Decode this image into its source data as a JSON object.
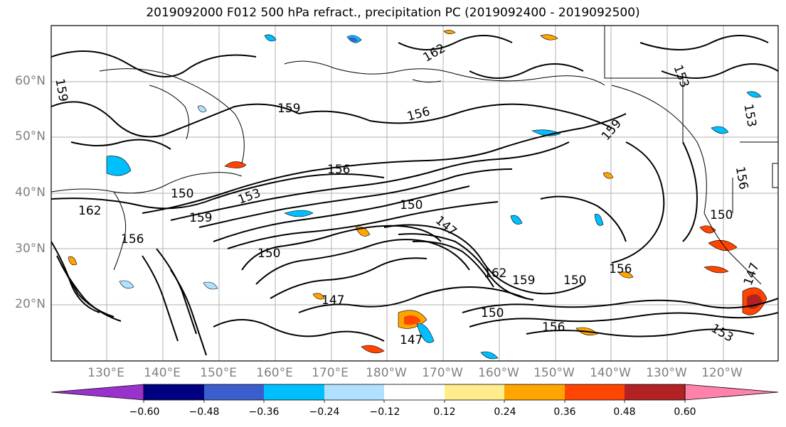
{
  "title": "2019092000 F012 500 hPa refract., precipitation PC (2019092400 - 2019092500)",
  "map": {
    "lat_labels": [
      "60°N",
      "50°N",
      "40°N",
      "30°N",
      "20°N"
    ],
    "lon_labels": [
      "130°E",
      "140°E",
      "150°E",
      "160°E",
      "170°E",
      "180°W",
      "170°W",
      "160°W",
      "150°W",
      "140°W",
      "130°W",
      "120°W"
    ],
    "contour_labels": [
      "159",
      "162",
      "156",
      "153",
      "150",
      "147",
      "159",
      "156",
      "150",
      "153",
      "162",
      "156",
      "147",
      "159",
      "150",
      "156",
      "162",
      "150",
      "147",
      "153",
      "159",
      "156",
      "150",
      "147",
      "159",
      "156",
      "153",
      "150"
    ]
  },
  "colorbar": {
    "colors": [
      "#9932cc",
      "#000080",
      "#3a5fcd",
      "#00bfff",
      "#b0e2ff",
      "#ffffff",
      "#ffec8b",
      "#ffa500",
      "#ff4500",
      "#b22222",
      "#ff82ab"
    ],
    "tick_labels": [
      "−0.60",
      "−0.48",
      "−0.36",
      "−0.24",
      "−0.12",
      "0.12",
      "0.24",
      "0.36",
      "0.48",
      "0.60"
    ],
    "tick_values": [
      -0.6,
      -0.48,
      -0.36,
      -0.24,
      -0.12,
      0.12,
      0.24,
      0.36,
      0.48,
      0.6
    ]
  }
}
